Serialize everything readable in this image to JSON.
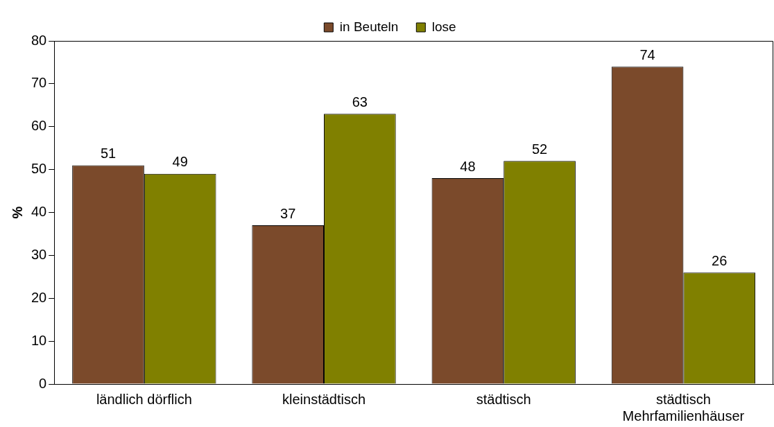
{
  "chart_data": {
    "type": "bar",
    "ylabel": "%",
    "categories": [
      "ländlich dörflich",
      "kleinstädtisch",
      "städtisch",
      "städtisch\nMehrfamilienhäuser"
    ],
    "series": [
      {
        "name": "in Beuteln",
        "color": "#7b4a2b",
        "values": [
          51,
          37,
          48,
          74
        ]
      },
      {
        "name": "lose",
        "color": "#808000",
        "values": [
          49,
          63,
          52,
          26
        ]
      }
    ],
    "ylim": [
      0,
      80
    ],
    "yticks": [
      0,
      10,
      20,
      30,
      40,
      50,
      60,
      70,
      80
    ],
    "grid": false,
    "legend": "top",
    "data_labels": true
  }
}
